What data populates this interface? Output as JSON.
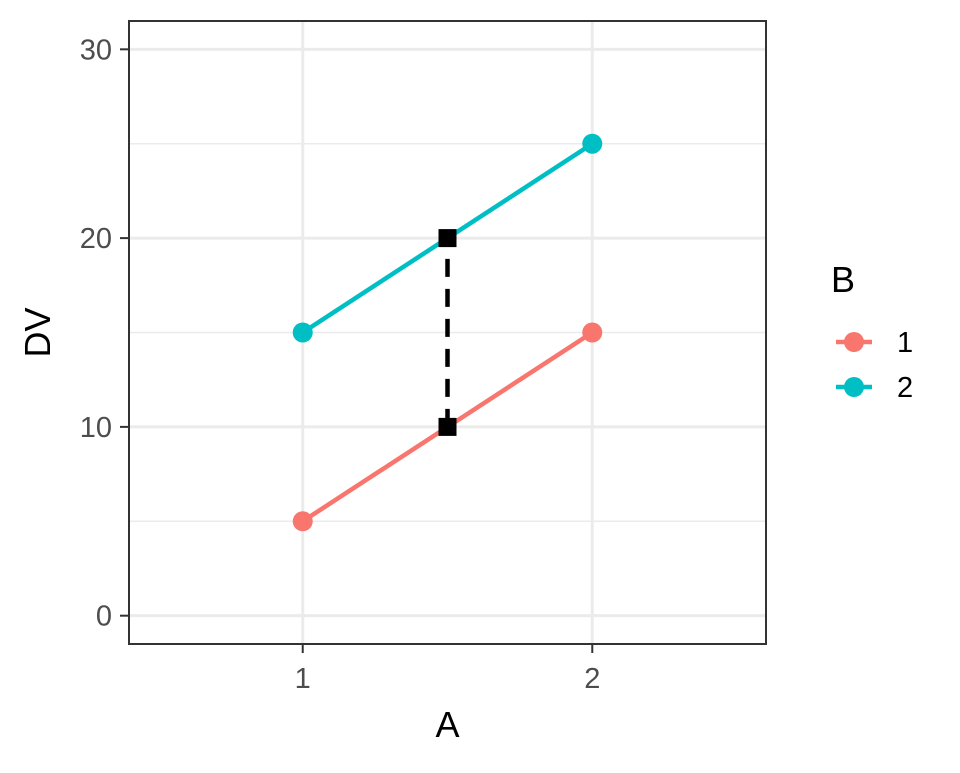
{
  "chart_data": {
    "type": "line",
    "title": "",
    "xlabel": "A",
    "ylabel": "DV",
    "x_categories": [
      "1",
      "2"
    ],
    "xlim": [
      0.4,
      2.6
    ],
    "ylim": [
      -1.5,
      31.5
    ],
    "y_ticks": [
      0,
      10,
      20,
      30
    ],
    "y_minor_ticks": [
      5,
      15,
      25
    ],
    "grid": true,
    "legend": {
      "title": "B",
      "placement": "right",
      "entries": [
        "1",
        "2"
      ]
    },
    "series": [
      {
        "name": "1",
        "color": "#F8766D",
        "points": [
          {
            "x": 1,
            "y": 5
          },
          {
            "x": 2,
            "y": 15
          }
        ]
      },
      {
        "name": "2",
        "color": "#00BFC4",
        "points": [
          {
            "x": 1,
            "y": 15
          },
          {
            "x": 2,
            "y": 25
          }
        ]
      }
    ],
    "annotation": {
      "style": "dashed",
      "color": "#000000",
      "markers": "square",
      "points": [
        {
          "x": 1.5,
          "y": 10
        },
        {
          "x": 1.5,
          "y": 20
        }
      ]
    }
  }
}
